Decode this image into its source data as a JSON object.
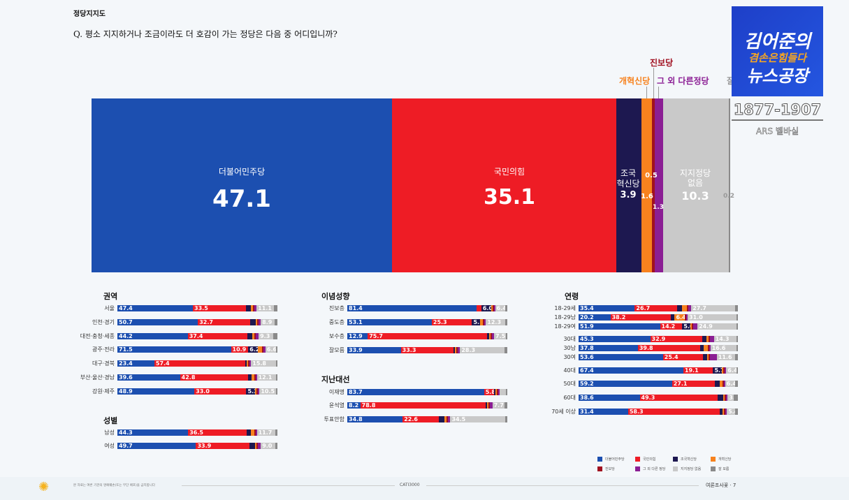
{
  "header": {
    "title": "정당지지도",
    "question": "Q. 평소 지지하거나 조금이라도 더 호감이 가는 정당은 다음 중 어디입니까?"
  },
  "logo": {
    "line1": "김어준의",
    "line2": "겸손은힘들다",
    "line3": "뉴스공장",
    "phone": "1877-1907",
    "sub": "ARS 벨바실"
  },
  "colors": [
    "#1c4fb0",
    "#ee1c25",
    "#1d1850",
    "#f7821e",
    "#a01020",
    "#8b1e94",
    "#c9c9c9",
    "#8a8a8a"
  ],
  "chart_data": {
    "type": "bar",
    "parties": [
      "더불어민주당",
      "국민의힘",
      "조국혁신당",
      "개혁신당",
      "진보당",
      "그 외 다른 정당",
      "지지정당 없음",
      "잘 모름"
    ],
    "overall": {
      "values": [
        47.1,
        35.1,
        3.9,
        1.6,
        0.5,
        1.3,
        10.3,
        0.2
      ],
      "labels": {
        "dem": "더불어민주당",
        "ppp": "국민의힘",
        "jokuk1": "조국",
        "jokuk2": "혁신당",
        "none1": "지지정당",
        "none2": "없음",
        "reform": "개혁신당",
        "prog": "진보당",
        "other": "그 외 다른정당",
        "dk": "잘"
      },
      "text": [
        "47.1",
        "35.1",
        "3.9",
        "1.6",
        "0.5",
        "1.3",
        "10.3",
        "0.2"
      ]
    },
    "groups": [
      {
        "title": "권역",
        "rows": [
          {
            "name": "서울",
            "values": [
              47.4,
              33.5,
              3.0,
              1.2,
              0.4,
              1.4,
              11.1,
              2.0
            ],
            "labeled": [
              0,
              1,
              6
            ]
          },
          {
            "name": "인천·경기",
            "values": [
              50.7,
              32.7,
              3.8,
              0.6,
              0.4,
              1.3,
              8.9,
              1.6
            ],
            "labeled": [
              0,
              1,
              6
            ]
          },
          {
            "name": "대전·충청·세종",
            "values": [
              44.2,
              37.4,
              3.0,
              1.2,
              0.4,
              2.0,
              9.3,
              2.5
            ],
            "labeled": [
              0,
              1,
              6
            ]
          },
          {
            "name": "광주·전라",
            "values": [
              71.5,
              10.9,
              6.2,
              2.5,
              0.5,
              1.2,
              6.6,
              0.6
            ],
            "labeled": [
              0,
              1,
              2,
              6
            ]
          },
          {
            "name": "대구·경북",
            "values": [
              23.4,
              57.4,
              1.2,
              0.5,
              0.3,
              0.5,
              15.8,
              0.9
            ],
            "labeled": [
              0,
              1,
              6
            ]
          },
          {
            "name": "부산·울산·경남",
            "values": [
              39.6,
              42.8,
              2.5,
              1.5,
              0.5,
              0.8,
              12.1,
              0.2
            ],
            "labeled": [
              0,
              1,
              6
            ]
          },
          {
            "name": "강원·제주",
            "values": [
              48.9,
              33.0,
              5.3,
              0.3,
              0.3,
              1.2,
              10.5,
              0.5
            ],
            "labeled": [
              0,
              1,
              2,
              6
            ]
          }
        ]
      },
      {
        "title": "성별",
        "rows": [
          {
            "name": "남성",
            "values": [
              44.3,
              36.5,
              3.0,
              1.8,
              0.6,
              0.9,
              11.7,
              1.2
            ],
            "labeled": [
              0,
              1,
              6
            ]
          },
          {
            "name": "여성",
            "values": [
              49.7,
              33.9,
              3.5,
              0.2,
              0.4,
              1.8,
              9.0,
              1.5
            ],
            "labeled": [
              0,
              1,
              6
            ]
          }
        ]
      },
      {
        "title": "이념성향",
        "rows": [
          {
            "name": "진보층",
            "values": [
              81.4,
              2.8,
              6.0,
              0.5,
              0.8,
              0.9,
              6.4,
              1.2
            ],
            "labeled": [
              0,
              2,
              6
            ]
          },
          {
            "name": "중도층",
            "values": [
              53.1,
              25.3,
              5.1,
              1.5,
              0.3,
              1.2,
              12.3,
              1.2
            ],
            "labeled": [
              0,
              1,
              2,
              6
            ]
          },
          {
            "name": "보수층",
            "values": [
              12.9,
              75.7,
              1.0,
              0.8,
              0.2,
              1.5,
              7.5,
              0.4
            ],
            "labeled": [
              0,
              1,
              6
            ]
          },
          {
            "name": "잘모름",
            "values": [
              33.9,
              33.3,
              0.8,
              0.3,
              0.3,
              1.5,
              28.3,
              1.6
            ],
            "labeled": [
              0,
              1,
              6
            ]
          }
        ]
      },
      {
        "title": "지난대선",
        "rows": [
          {
            "name": "이재명",
            "values": [
              83.7,
              5.8,
              0.8,
              0.2,
              0.3,
              0.4,
              4.0,
              0.5
            ],
            "labeled": [
              0,
              1
            ]
          },
          {
            "name": "윤석열",
            "values": [
              8.2,
              78.8,
              0.8,
              1.0,
              0.3,
              1.5,
              7.7,
              1.7
            ],
            "labeled": [
              0,
              1,
              6
            ]
          },
          {
            "name": "투표안함",
            "values": [
              34.8,
              22.6,
              3.5,
              1.5,
              0.3,
              1.5,
              34.5,
              1.3
            ],
            "labeled": [
              0,
              1,
              6
            ]
          }
        ]
      },
      {
        "title": "연령",
        "rows": [
          {
            "name": "18-29세",
            "values": [
              35.4,
              26.7,
              3.0,
              3.0,
              0.5,
              2.0,
              27.7,
              1.7
            ],
            "labeled": [
              0,
              1,
              6
            ]
          },
          {
            "name": "18-29남",
            "values": [
              20.2,
              38.2,
              2.5,
              6.4,
              0.3,
              0.5,
              31.0,
              0.9
            ],
            "labeled": [
              0,
              1,
              3,
              6
            ]
          },
          {
            "name": "18-29여",
            "values": [
              51.9,
              14.2,
              5.0,
              0.5,
              0.5,
              2.8,
              24.9,
              0.2
            ],
            "labeled": [
              0,
              1,
              2,
              6
            ]
          },
          {
            "name": "30대",
            "values": [
              45.3,
              32.9,
              2.5,
              1.5,
              0.3,
              2.5,
              14.3,
              0.7
            ],
            "labeled": [
              0,
              1,
              6
            ]
          },
          {
            "name": "30남",
            "values": [
              37.8,
              39.8,
              2.2,
              2.5,
              0.2,
              0.7,
              16.6,
              0.2
            ],
            "labeled": [
              0,
              1,
              6
            ]
          },
          {
            "name": "30여",
            "values": [
              53.6,
              25.4,
              2.5,
              0.3,
              0.3,
              4.5,
              11.6,
              1.8
            ],
            "labeled": [
              0,
              1,
              6
            ]
          },
          {
            "name": "40대",
            "values": [
              67.4,
              19.1,
              5.7,
              0.5,
              0.5,
              0.4,
              6.4,
              0.0
            ],
            "labeled": [
              0,
              1,
              2,
              6
            ]
          },
          {
            "name": "50대",
            "values": [
              59.2,
              27.1,
              3.0,
              1.8,
              0.4,
              0.5,
              6.4,
              1.6
            ],
            "labeled": [
              0,
              1,
              6
            ]
          },
          {
            "name": "60대",
            "values": [
              38.6,
              49.3,
              3.5,
              0.8,
              0.5,
              0.8,
              3.7,
              2.8
            ],
            "labeled": [
              0,
              1,
              6
            ]
          },
          {
            "name": "70세 이상",
            "values": [
              31.4,
              58.3,
              1.5,
              0.3,
              0.5,
              1.0,
              5.4,
              1.6
            ],
            "labeled": [
              0,
              1,
              6
            ]
          }
        ]
      }
    ]
  },
  "footer": {
    "note": "본 자료는 여론 기관의 명예훼손(또는 무단 배포)을 금지합니다",
    "center": "CATI3000",
    "right": "여론조사꽃 · 7"
  }
}
